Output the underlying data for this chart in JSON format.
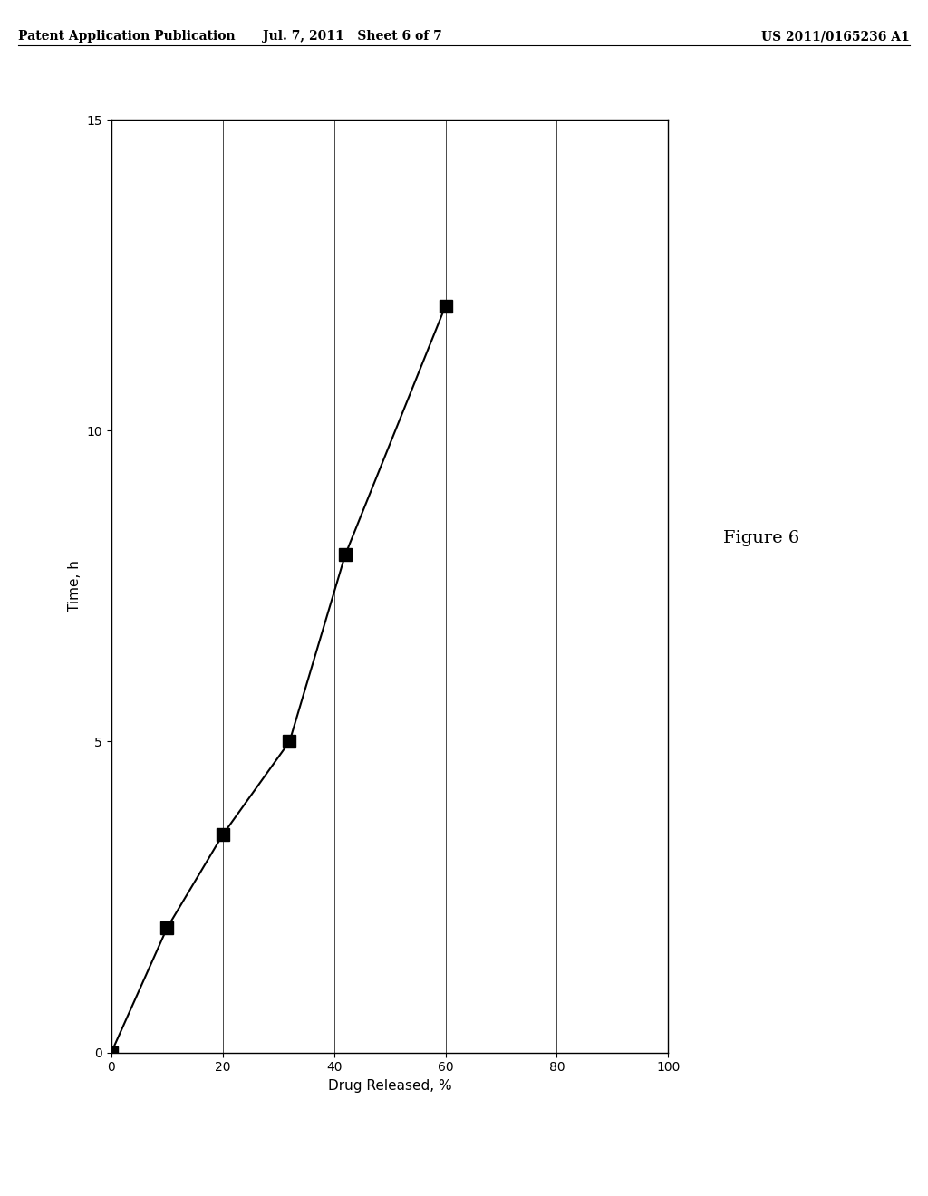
{
  "title": "Figure 6",
  "header_left": "Patent Application Publication",
  "header_mid": "Jul. 7, 2011   Sheet 6 of 7",
  "header_right": "US 2011/0165236 A1",
  "xlabel": "Drug Released, %",
  "ylabel": "Time, h",
  "x_values": [
    60,
    42,
    32,
    20,
    10,
    0
  ],
  "y_values": [
    12,
    8,
    5,
    3.5,
    2,
    0
  ],
  "xlim": [
    0,
    100
  ],
  "ylim": [
    0,
    15
  ],
  "xticks": [
    0,
    20,
    40,
    60,
    80,
    100
  ],
  "yticks": [
    0,
    5,
    10,
    15
  ],
  "marker_color": "#000000",
  "line_color": "#000000",
  "background_color": "#ffffff",
  "plot_bg": "#ffffff",
  "marker_size": 10,
  "line_width": 1.5,
  "font_size_header": 10,
  "font_size_axis_label": 11,
  "font_size_ticks": 10,
  "font_size_figure_label": 14
}
